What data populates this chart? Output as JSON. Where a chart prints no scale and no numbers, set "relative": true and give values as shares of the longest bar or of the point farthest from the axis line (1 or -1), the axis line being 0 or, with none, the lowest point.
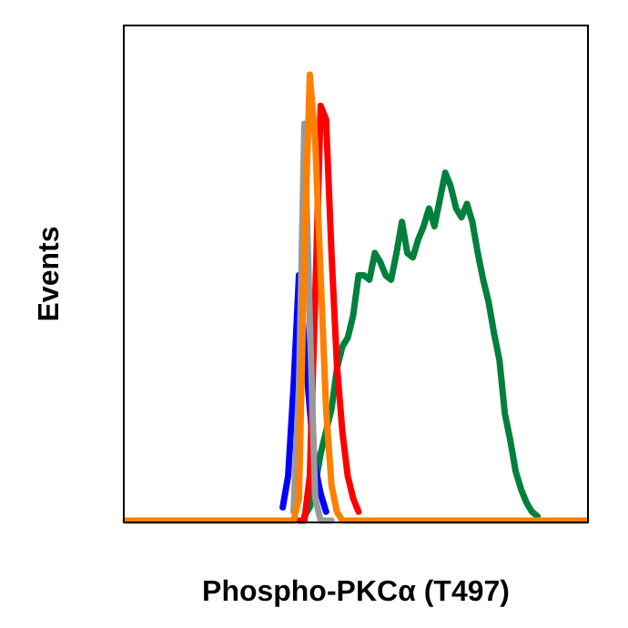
{
  "chart_data": {
    "type": "line",
    "relative": true,
    "xlabel": "Phospho-PKCα (T497)",
    "ylabel": "Events",
    "categories": [
      null,
      null,
      null,
      null,
      null,
      null,
      null,
      null,
      null,
      null,
      null,
      null,
      null,
      null,
      null,
      null,
      null,
      null,
      null,
      null,
      null,
      null,
      null,
      null,
      null,
      null,
      null,
      null,
      null,
      null,
      null,
      null,
      null,
      null,
      null,
      null,
      null,
      null,
      null,
      null,
      null,
      null,
      null,
      null,
      null,
      null,
      null,
      null,
      null,
      null,
      null,
      null,
      null,
      null,
      null,
      null,
      null,
      null,
      null,
      null,
      null,
      null,
      null,
      null,
      null,
      null,
      null,
      null,
      null,
      null,
      null,
      null,
      null,
      null,
      null,
      null,
      null,
      null,
      null,
      null,
      null,
      null,
      null,
      null,
      null,
      null
    ],
    "series": [
      {
        "color": "#00803c",
        "values": [
          null,
          null,
          null,
          null,
          null,
          null,
          null,
          null,
          null,
          null,
          null,
          null,
          null,
          null,
          null,
          null,
          null,
          null,
          null,
          null,
          null,
          null,
          null,
          null,
          null,
          null,
          null,
          null,
          null,
          null,
          null,
          null,
          null,
          0.01,
          0.03,
          0.08,
          0.15,
          0.2,
          0.25,
          0.34,
          0.39,
          0.41,
          0.46,
          0.55,
          0.55,
          0.54,
          0.6,
          0.58,
          0.55,
          0.54,
          0.6,
          0.67,
          0.6,
          0.59,
          0.63,
          0.66,
          0.7,
          0.66,
          0.72,
          0.78,
          0.75,
          0.7,
          0.68,
          0.71,
          0.67,
          0.6,
          0.54,
          0.49,
          0.42,
          0.36,
          0.24,
          0.18,
          0.11,
          0.07,
          0.04,
          0.02,
          0.01,
          null,
          null,
          null,
          null,
          null,
          null,
          null,
          null,
          null
        ]
      },
      {
        "color": "#0000ff",
        "values": [
          null,
          null,
          null,
          null,
          null,
          null,
          null,
          null,
          null,
          null,
          null,
          null,
          null,
          null,
          null,
          null,
          null,
          null,
          null,
          null,
          null,
          null,
          null,
          null,
          null,
          null,
          null,
          null,
          null,
          0.03,
          0.1,
          0.3,
          0.55,
          0.4,
          0.25,
          0.12,
          0.06,
          0.02,
          null,
          null,
          null,
          null,
          null,
          null,
          null,
          null,
          null,
          null,
          null,
          null,
          null,
          null,
          null,
          null,
          null,
          null,
          null,
          null,
          null,
          null,
          null,
          null,
          null,
          null,
          null,
          null,
          null,
          null,
          null,
          null,
          null,
          null,
          null,
          null,
          null,
          null,
          null,
          null,
          null,
          null,
          null,
          null,
          null,
          null,
          null,
          null
        ]
      },
      {
        "color": "#ff0000",
        "values": [
          null,
          null,
          null,
          null,
          null,
          null,
          null,
          null,
          null,
          null,
          null,
          null,
          null,
          null,
          null,
          null,
          null,
          null,
          null,
          null,
          null,
          null,
          null,
          null,
          null,
          null,
          null,
          null,
          null,
          null,
          null,
          null,
          0,
          0,
          0.1,
          0.5,
          0.93,
          0.9,
          0.6,
          0.35,
          0.2,
          0.1,
          0.05,
          0.02,
          null,
          null,
          null,
          null,
          null,
          null,
          null,
          null,
          null,
          null,
          null,
          null,
          null,
          null,
          null,
          null,
          null,
          null,
          null,
          null,
          null,
          null,
          null,
          null,
          null,
          null,
          null,
          null,
          null,
          null,
          null,
          null,
          null,
          null,
          null,
          null,
          null,
          null,
          null,
          null,
          null,
          null
        ]
      },
      {
        "color": "#999999",
        "values": [
          null,
          null,
          null,
          null,
          null,
          null,
          null,
          null,
          null,
          null,
          null,
          null,
          null,
          null,
          null,
          null,
          null,
          null,
          null,
          null,
          null,
          null,
          null,
          null,
          null,
          null,
          null,
          null,
          null,
          null,
          null,
          0.02,
          0.3,
          0.89,
          0.45,
          0.05,
          0,
          0,
          0,
          null,
          null,
          null,
          null,
          null,
          null,
          null,
          null,
          null,
          null,
          null,
          null,
          null,
          null,
          null,
          null,
          null,
          null,
          null,
          null,
          null,
          null,
          null,
          null,
          null,
          null,
          null,
          null,
          null,
          null,
          null,
          null,
          null,
          null,
          null,
          null,
          null,
          null,
          null,
          null,
          null,
          null,
          null,
          null,
          null,
          null,
          null
        ]
      },
      {
        "color": "#ff8000",
        "values": [
          0,
          0,
          0,
          0,
          0,
          0,
          0,
          0,
          0,
          0,
          0,
          0,
          0,
          0,
          0,
          0,
          0,
          0,
          0,
          0,
          0,
          0,
          0,
          0,
          0,
          0,
          0,
          0,
          0,
          0,
          0,
          0,
          0.05,
          0.6,
          1,
          0.85,
          0.55,
          0.25,
          0.08,
          0.02,
          0,
          0,
          0,
          0,
          0,
          0,
          0,
          0,
          0,
          0,
          0,
          0,
          0,
          0,
          0,
          0,
          0,
          0,
          0,
          0,
          0,
          0,
          0,
          0,
          0,
          0,
          0,
          0,
          0,
          0,
          0,
          0,
          0,
          0,
          0,
          0,
          0,
          0,
          0,
          0,
          0,
          0,
          0,
          0,
          0,
          0
        ]
      }
    ]
  }
}
